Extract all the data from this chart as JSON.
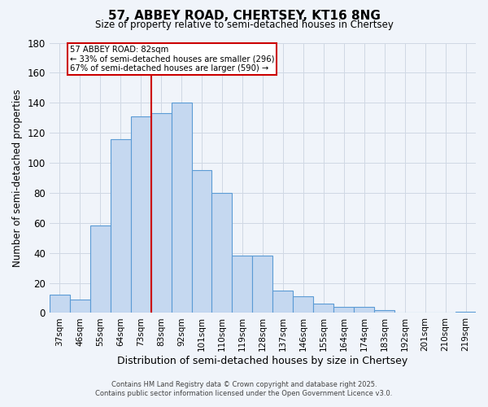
{
  "title": "57, ABBEY ROAD, CHERTSEY, KT16 8NG",
  "subtitle": "Size of property relative to semi-detached houses in Chertsey",
  "xlabel": "Distribution of semi-detached houses by size in Chertsey",
  "ylabel": "Number of semi-detached properties",
  "categories": [
    "37sqm",
    "46sqm",
    "55sqm",
    "64sqm",
    "73sqm",
    "83sqm",
    "92sqm",
    "101sqm",
    "110sqm",
    "119sqm",
    "128sqm",
    "137sqm",
    "146sqm",
    "155sqm",
    "164sqm",
    "174sqm",
    "183sqm",
    "192sqm",
    "201sqm",
    "210sqm",
    "219sqm"
  ],
  "values": [
    12,
    9,
    58,
    116,
    131,
    133,
    140,
    95,
    80,
    38,
    38,
    15,
    11,
    6,
    4,
    4,
    2,
    0,
    0,
    0,
    1
  ],
  "bar_color": "#c5d8f0",
  "bar_edge_color": "#5b9bd5",
  "grid_color": "#d0d8e4",
  "bg_color": "#f0f4fa",
  "vline_color": "#cc0000",
  "annotation_title": "57 ABBEY ROAD: 82sqm",
  "annotation_line1": "← 33% of semi-detached houses are smaller (296)",
  "annotation_line2": "67% of semi-detached houses are larger (590) →",
  "annotation_box_color": "#cc0000",
  "ylim": [
    0,
    180
  ],
  "yticks": [
    0,
    20,
    40,
    60,
    80,
    100,
    120,
    140,
    160,
    180
  ],
  "footer1": "Contains HM Land Registry data © Crown copyright and database right 2025.",
  "footer2": "Contains public sector information licensed under the Open Government Licence v3.0."
}
